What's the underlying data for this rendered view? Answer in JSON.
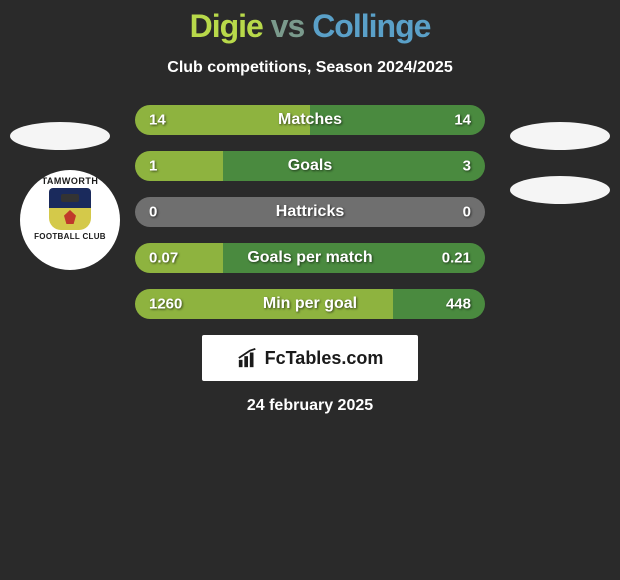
{
  "colors": {
    "background": "#2a2a2a",
    "title_player1": "#b8d94a",
    "title_vs": "#7a9a8c",
    "title_player2": "#5aa0c8",
    "bar_left": "#8eb33f",
    "bar_right": "#4a8a3f",
    "bar_neutral": "#6f6f6f",
    "text": "#ffffff"
  },
  "title": {
    "player1": "Digie",
    "vs": "vs",
    "player2": "Collinge",
    "fontsize": 32
  },
  "subtitle": "Club competitions, Season 2024/2025",
  "crest": {
    "top_text": "TAMWORTH",
    "bottom_text": "FOOTBALL CLUB"
  },
  "stats": [
    {
      "label": "Matches",
      "val_left": "14",
      "val_right": "14",
      "left_pct": 50
    },
    {
      "label": "Goals",
      "val_left": "1",
      "val_right": "3",
      "left_pct": 25
    },
    {
      "label": "Hattricks",
      "val_left": "0",
      "val_right": "0",
      "left_pct": 0,
      "neutral": true
    },
    {
      "label": "Goals per match",
      "val_left": "0.07",
      "val_right": "0.21",
      "left_pct": 25
    },
    {
      "label": "Min per goal",
      "val_left": "1260",
      "val_right": "448",
      "left_pct": 73.8
    }
  ],
  "footer": {
    "brand": "FcTables.com",
    "date": "24 february 2025"
  }
}
